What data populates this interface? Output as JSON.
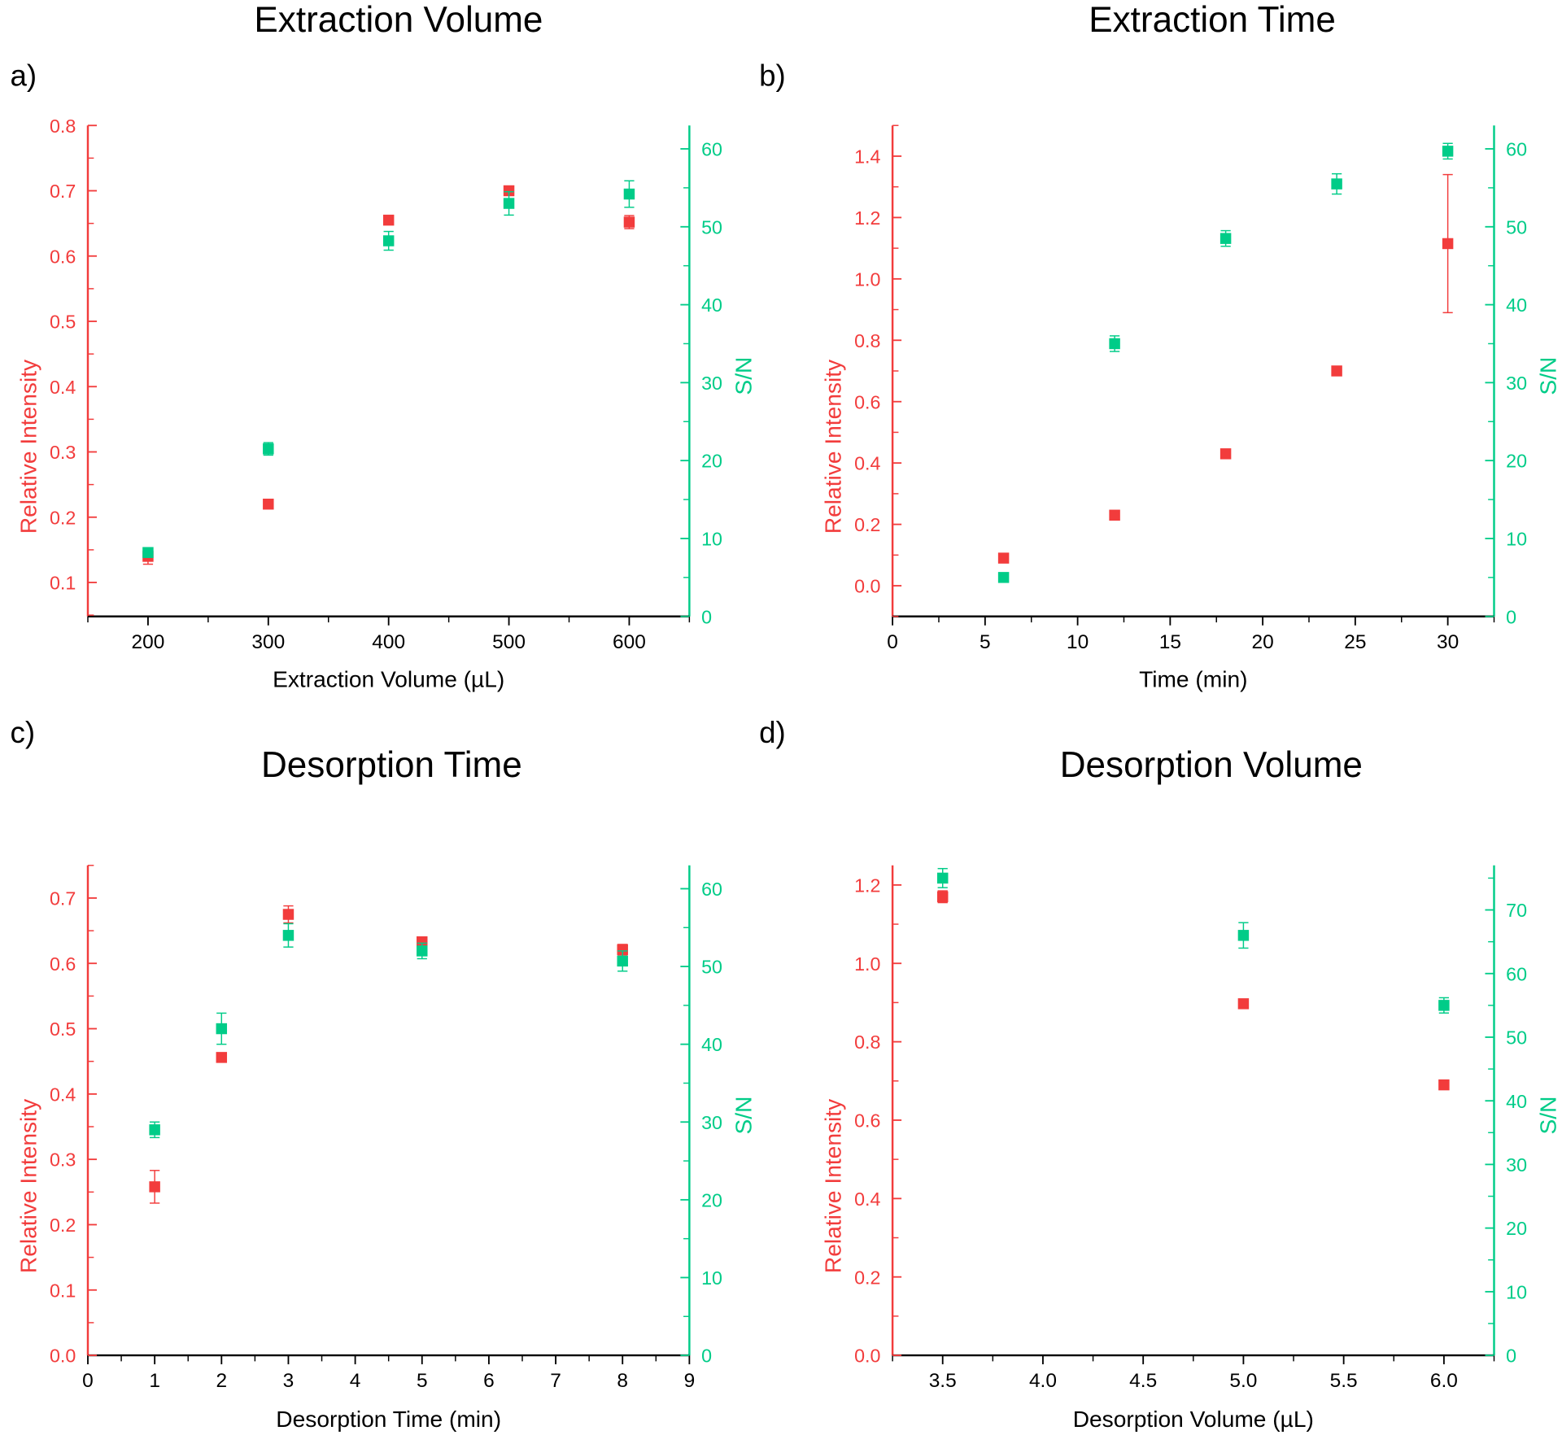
{
  "colors": {
    "intensity": "#f23c3c",
    "sn": "#00cc88",
    "axis": "#000000"
  },
  "chart_data": [
    {
      "type": "scatter",
      "panel_label": "a)",
      "title": "Extraction Volume",
      "xlabel": "Extraction Volume (µL)",
      "ylabel_left": "Relative Intensity",
      "ylabel_right": "S/N",
      "xlim": [
        150,
        650
      ],
      "ylim_left": [
        0.048,
        0.8
      ],
      "ylim_right": [
        0,
        63
      ],
      "xticks": [
        200,
        300,
        400,
        500,
        600
      ],
      "xtick_labels": [
        "200",
        "300",
        "400",
        "500",
        "600"
      ],
      "xminor": [
        150,
        250,
        350,
        450,
        550,
        650
      ],
      "yticks_left": [
        0.1,
        0.2,
        0.3,
        0.4,
        0.5,
        0.6,
        0.7,
        0.8
      ],
      "ytick_labels_left": [
        "0.1",
        "0.2",
        "0.3",
        "0.4",
        "0.5",
        "0.6",
        "0.7",
        "0.8"
      ],
      "yticks_right": [
        0,
        10,
        20,
        30,
        40,
        50,
        60
      ],
      "ytick_labels_right": [
        "0",
        "10",
        "20",
        "30",
        "40",
        "50",
        "60"
      ],
      "series": [
        {
          "name": "Relative Intensity",
          "axis": "left",
          "x": [
            200,
            300,
            400,
            500,
            600
          ],
          "y": [
            0.14,
            0.22,
            0.655,
            0.7,
            0.652
          ],
          "err": [
            0.012,
            0.004,
            0.004,
            0.006,
            0.01
          ]
        },
        {
          "name": "S/N",
          "axis": "right",
          "x": [
            200,
            300,
            400,
            500,
            600
          ],
          "y": [
            8.2,
            21.5,
            48.2,
            53.0,
            54.2
          ],
          "err": [
            0.6,
            0.8,
            1.2,
            1.5,
            1.7
          ]
        }
      ]
    },
    {
      "type": "scatter",
      "panel_label": "b)",
      "title": "Extraction Time",
      "xlabel": "Time (min)",
      "ylabel_left": "Relative Intensity",
      "ylabel_right": "S/N",
      "xlim": [
        0,
        32.5
      ],
      "ylim_left": [
        -0.1,
        1.5
      ],
      "ylim_right": [
        0,
        63
      ],
      "xticks": [
        0,
        5,
        10,
        15,
        20,
        25,
        30
      ],
      "xtick_labels": [
        "0",
        "5",
        "10",
        "15",
        "20",
        "25",
        "30"
      ],
      "xminor": [
        2.5,
        7.5,
        12.5,
        17.5,
        22.5,
        27.5,
        32.5
      ],
      "yticks_left": [
        0.0,
        0.2,
        0.4,
        0.6,
        0.8,
        1.0,
        1.2,
        1.4
      ],
      "ytick_labels_left": [
        "0.0",
        "0.2",
        "0.4",
        "0.6",
        "0.8",
        "1.0",
        "1.2",
        "1.4"
      ],
      "yticks_right": [
        0,
        10,
        20,
        30,
        40,
        50,
        60
      ],
      "ytick_labels_right": [
        "0",
        "10",
        "20",
        "30",
        "40",
        "50",
        "60"
      ],
      "series": [
        {
          "name": "Relative Intensity",
          "axis": "left",
          "x": [
            6,
            12,
            18,
            24,
            30
          ],
          "y": [
            0.09,
            0.23,
            0.43,
            0.7,
            1.115
          ],
          "err": [
            0.005,
            0.005,
            0.015,
            0.015,
            0.225
          ]
        },
        {
          "name": "S/N",
          "axis": "right",
          "x": [
            6,
            12,
            18,
            24,
            30
          ],
          "y": [
            5.0,
            35.0,
            48.5,
            55.5,
            59.7
          ],
          "err": [
            0.3,
            1.0,
            1.0,
            1.3,
            1.0
          ]
        }
      ]
    },
    {
      "type": "scatter",
      "panel_label": "c)",
      "title": "Desorption Time",
      "xlabel": "Desorption Time (min)",
      "ylabel_left": "Relative Intensity",
      "ylabel_right": "S/N",
      "xlim": [
        0,
        9
      ],
      "ylim_left": [
        0,
        0.75
      ],
      "ylim_right": [
        0,
        63
      ],
      "xticks": [
        0,
        1,
        2,
        3,
        4,
        5,
        6,
        7,
        8,
        9
      ],
      "xtick_labels": [
        "0",
        "1",
        "2",
        "3",
        "4",
        "5",
        "6",
        "7",
        "8",
        "9"
      ],
      "xminor": [
        0.5,
        1.5,
        2.5,
        3.5,
        4.5,
        5.5,
        6.5,
        7.5,
        8.5
      ],
      "yticks_left": [
        0.0,
        0.1,
        0.2,
        0.3,
        0.4,
        0.5,
        0.6,
        0.7
      ],
      "ytick_labels_left": [
        "0.0",
        "0.1",
        "0.2",
        "0.3",
        "0.4",
        "0.5",
        "0.6",
        "0.7"
      ],
      "yticks_right": [
        0,
        10,
        20,
        30,
        40,
        50,
        60
      ],
      "ytick_labels_right": [
        "0",
        "10",
        "20",
        "30",
        "40",
        "50",
        "60"
      ],
      "series": [
        {
          "name": "Relative Intensity",
          "axis": "left",
          "x": [
            1,
            2,
            3,
            5,
            8
          ],
          "y": [
            0.258,
            0.456,
            0.675,
            0.633,
            0.621
          ],
          "err": [
            0.025,
            0.006,
            0.013,
            0.006,
            0.008
          ]
        },
        {
          "name": "S/N",
          "axis": "right",
          "x": [
            1,
            2,
            3,
            5,
            8
          ],
          "y": [
            29.0,
            42.0,
            54.0,
            52.0,
            50.7
          ],
          "err": [
            1.0,
            2.0,
            1.5,
            1.0,
            1.3
          ]
        }
      ]
    },
    {
      "type": "scatter",
      "panel_label": "d)",
      "title": "Desorption Volume",
      "xlabel": "Desorption Volume (µL)",
      "ylabel_left": "Relative Intensity",
      "ylabel_right": "S/N",
      "xlim": [
        3.25,
        6.25
      ],
      "ylim_left": [
        0,
        1.25
      ],
      "ylim_right": [
        0,
        77
      ],
      "xticks": [
        3.5,
        4.0,
        4.5,
        5.0,
        5.5,
        6.0
      ],
      "xtick_labels": [
        "3.5",
        "4.0",
        "4.5",
        "5.0",
        "5.5",
        "6.0"
      ],
      "xminor": [
        3.25,
        3.75,
        4.25,
        4.75,
        5.25,
        5.75,
        6.25
      ],
      "yticks_left": [
        0.0,
        0.2,
        0.4,
        0.6,
        0.8,
        1.0,
        1.2
      ],
      "ytick_labels_left": [
        "0.0",
        "0.2",
        "0.4",
        "0.6",
        "0.8",
        "1.0",
        "1.2"
      ],
      "yticks_right": [
        0,
        10,
        20,
        30,
        40,
        50,
        60,
        70
      ],
      "ytick_labels_right": [
        "0",
        "10",
        "20",
        "30",
        "40",
        "50",
        "60",
        "70"
      ],
      "series": [
        {
          "name": "Relative Intensity",
          "axis": "left",
          "x": [
            3.5,
            5.0,
            6.0
          ],
          "y": [
            1.17,
            0.897,
            0.69
          ],
          "err": [
            0.015,
            0.005,
            0.005
          ]
        },
        {
          "name": "S/N",
          "axis": "right",
          "x": [
            3.5,
            5.0,
            6.0
          ],
          "y": [
            75.0,
            66.0,
            55.0
          ],
          "err": [
            1.5,
            2.0,
            1.2
          ]
        }
      ]
    }
  ]
}
